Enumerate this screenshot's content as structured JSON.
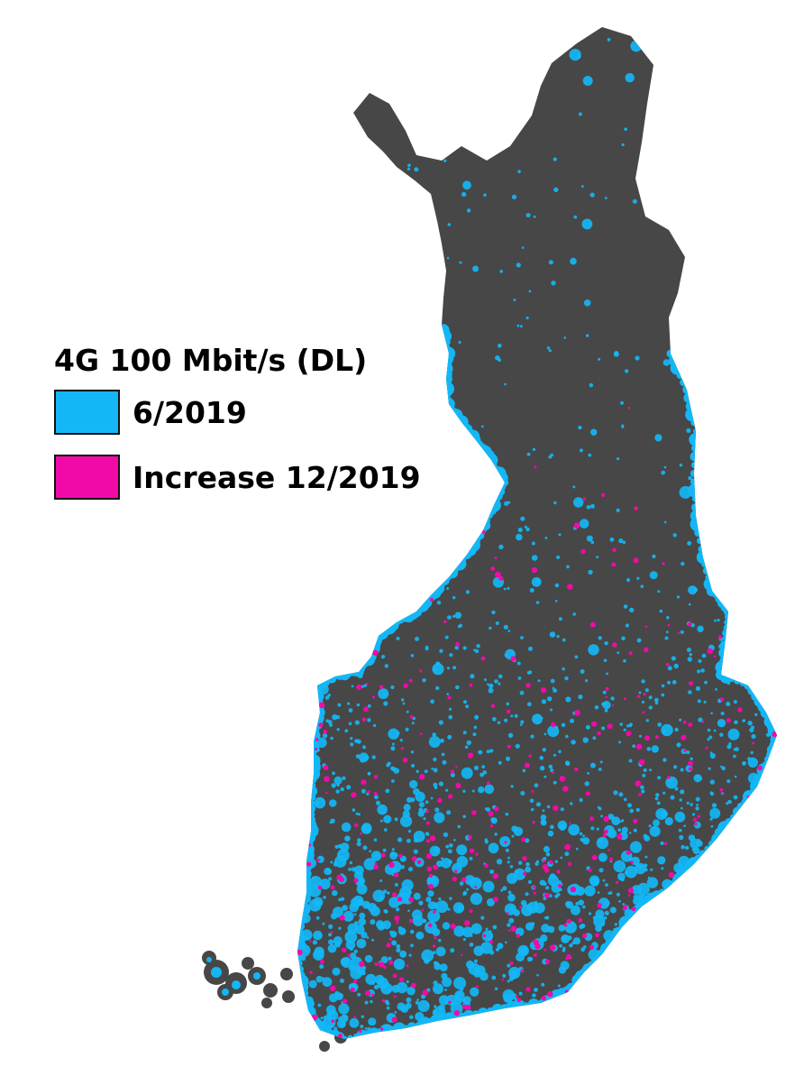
{
  "legend": {
    "title": "4G 100 Mbit/s (DL)",
    "items": [
      {
        "label": "6/2019",
        "color": "#13b7f6"
      },
      {
        "label": "Increase 12/2019",
        "color": "#f20aa8"
      }
    ]
  },
  "map": {
    "land_color": "#474747",
    "coverage_color": "#13b7f6",
    "increase_color": "#f20aa8",
    "background_color": "#ffffff"
  }
}
